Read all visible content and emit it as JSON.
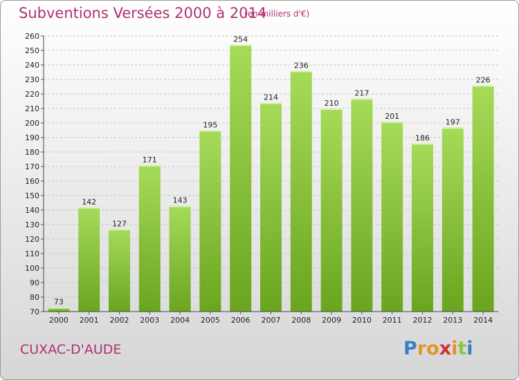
{
  "header": {
    "title": "Subventions Versées 2000 à 2014",
    "subtitle": "(en milliers d'€)"
  },
  "footer": {
    "commune": "CUXAC-D'AUDE",
    "logo_letters": [
      "P",
      "r",
      "o",
      "x",
      "i",
      "t",
      "i"
    ],
    "logo_colors": [
      "#3a7fc4",
      "#e5932a",
      "#e5932a",
      "#cc3333",
      "#e5932a",
      "#8cc63f",
      "#3a7fc4"
    ]
  },
  "colors": {
    "bar_light": "#a6db5a",
    "bar_dark": "#6aa51f",
    "text_accent": "#b03070"
  },
  "chart_data": {
    "type": "bar",
    "title": "Subventions Versées 2000 à 2014",
    "subtitle": "(en milliers d'€)",
    "categories": [
      "2000",
      "2001",
      "2002",
      "2003",
      "2004",
      "2005",
      "2006",
      "2007",
      "2008",
      "2009",
      "2010",
      "2011",
      "2012",
      "2013",
      "2014"
    ],
    "values": [
      73,
      142,
      127,
      171,
      143,
      195,
      254,
      214,
      236,
      210,
      217,
      201,
      186,
      197,
      226
    ],
    "ylim": [
      70,
      260
    ],
    "yticks": [
      "70",
      "80",
      "90",
      "100",
      "110",
      "120",
      "130",
      "140",
      "150",
      "160",
      "170",
      "180",
      "190",
      "200",
      "210",
      "220",
      "230",
      "240",
      "250",
      "260"
    ],
    "grid": true,
    "xlabel": "",
    "ylabel": ""
  }
}
